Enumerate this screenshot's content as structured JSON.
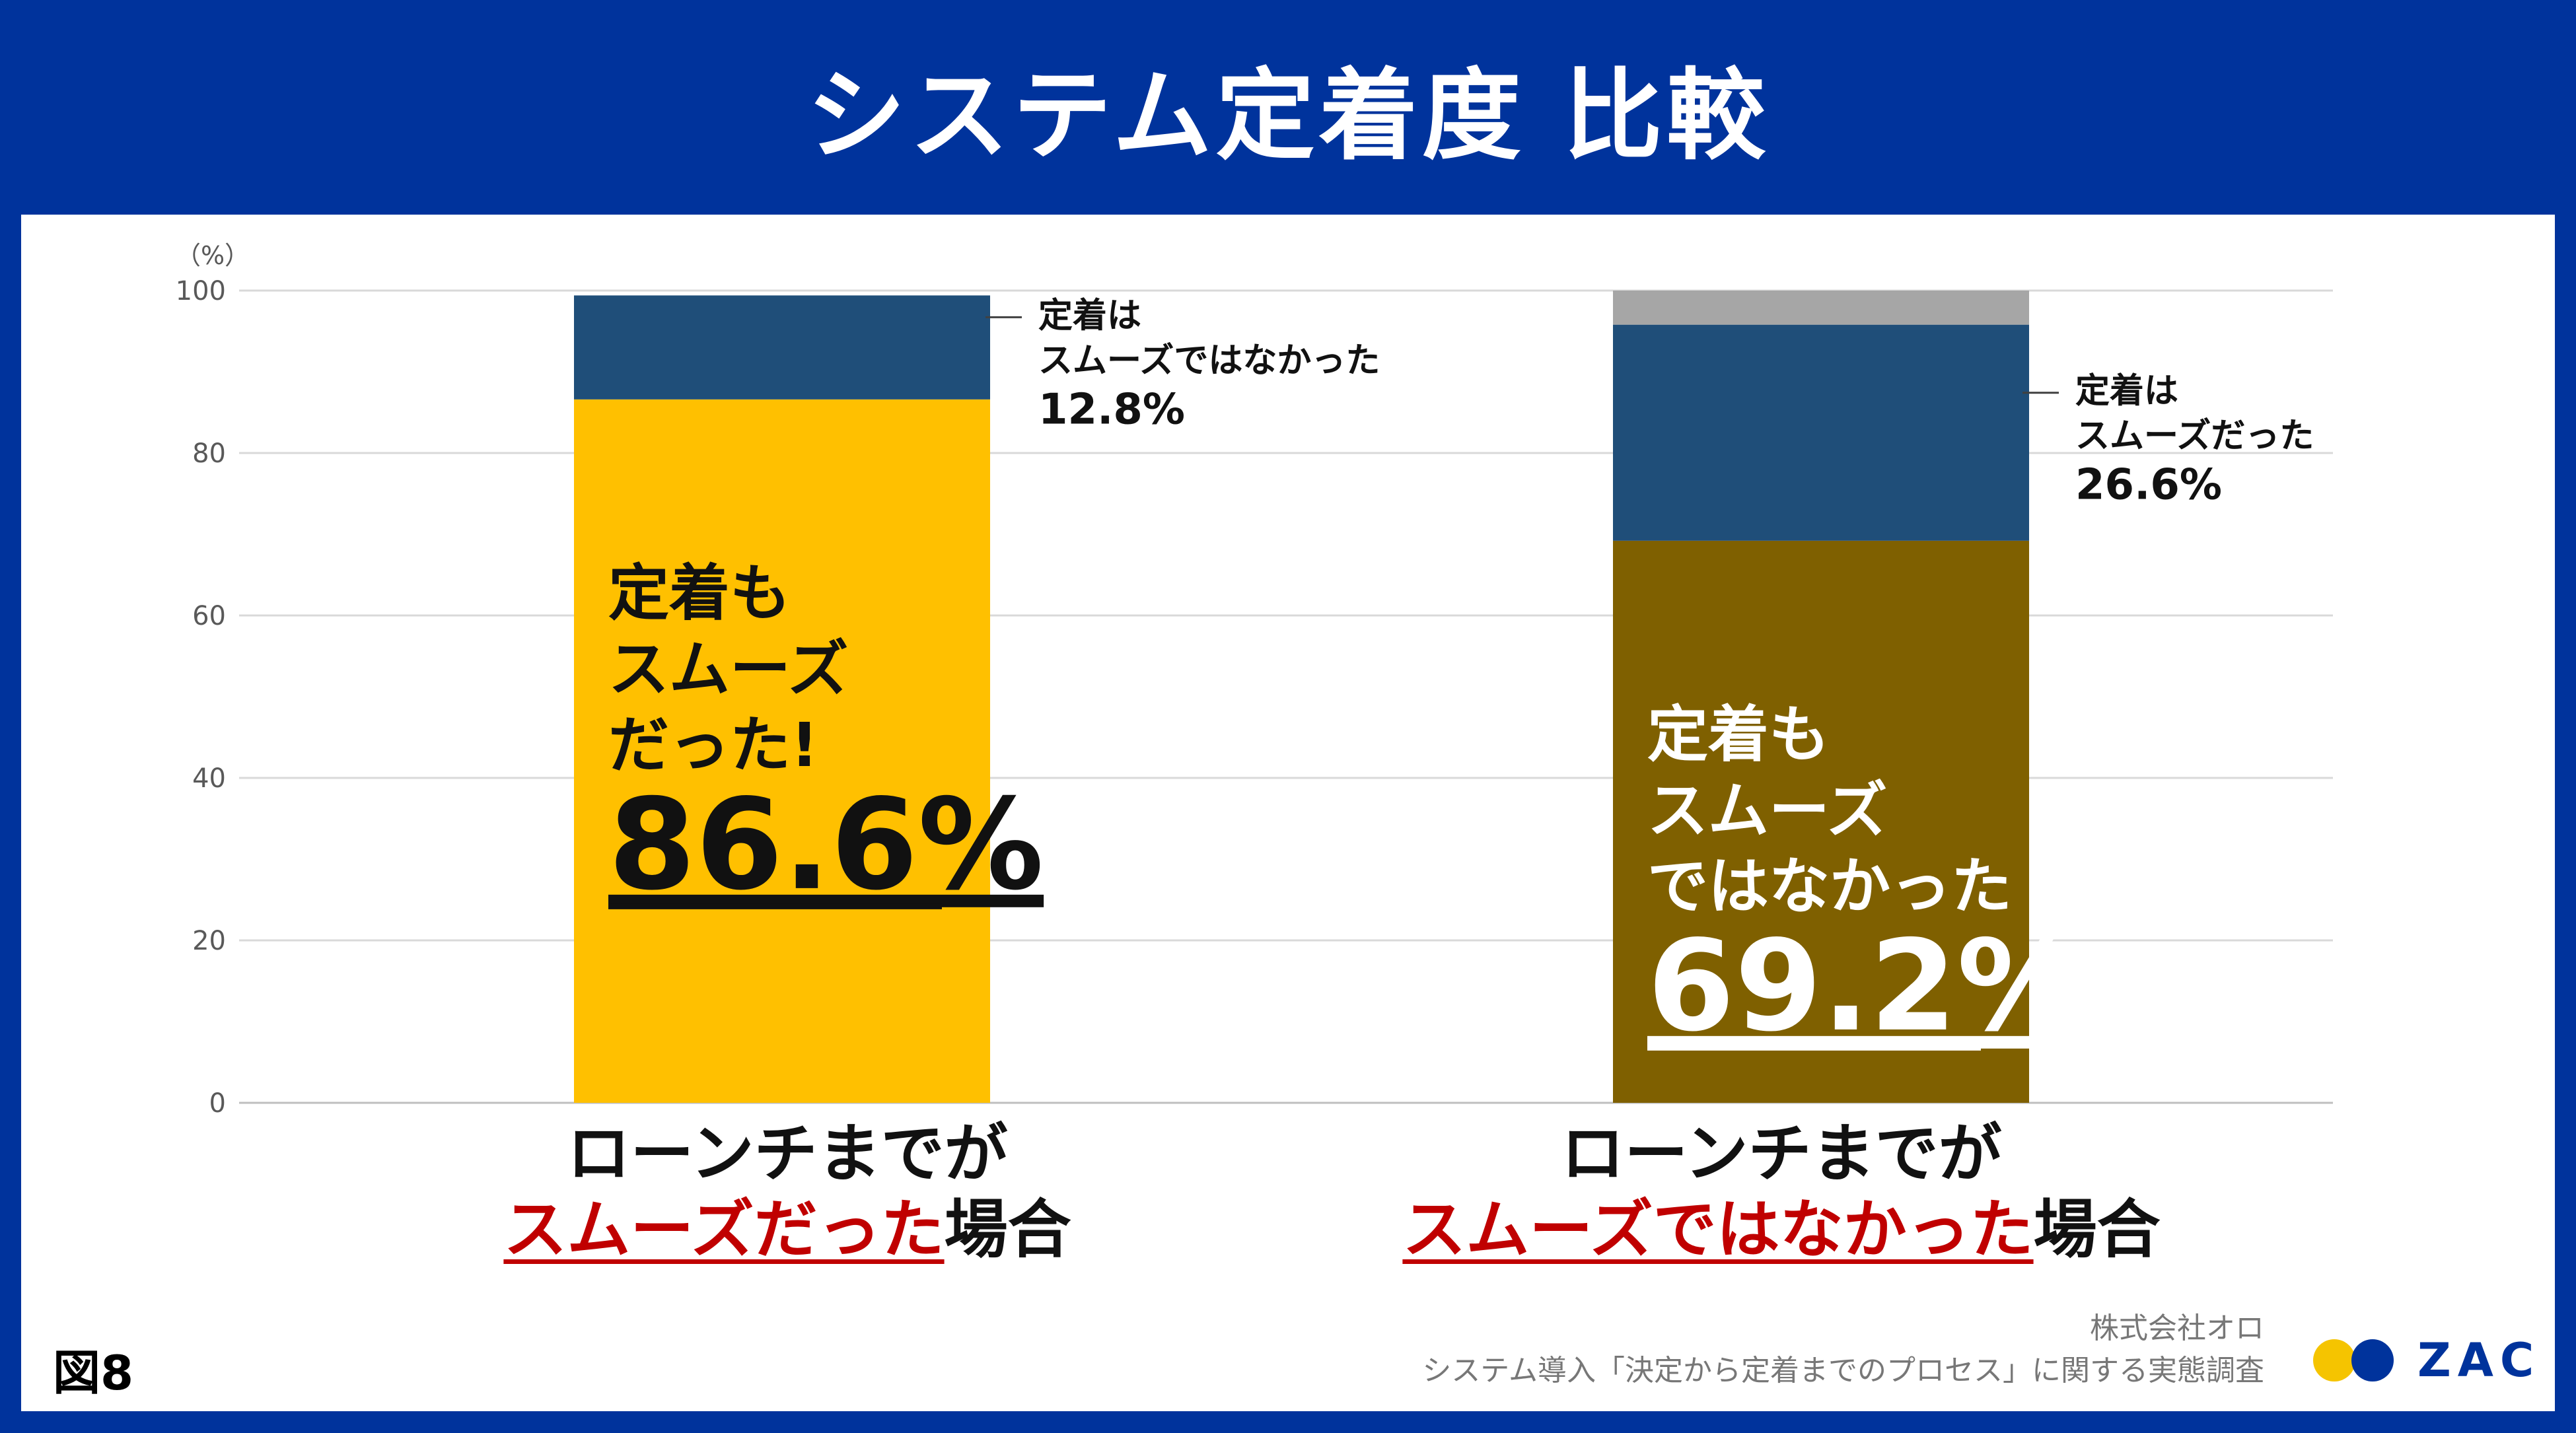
{
  "title": "システム定着度 比較",
  "chart_data": {
    "type": "bar",
    "stacked": true,
    "unit_label": "（%）",
    "ylim": [
      0,
      100
    ],
    "yticks": [
      0,
      20,
      40,
      60,
      80,
      100
    ],
    "grid": true,
    "categories": [
      "ローンチまでがスムーズだった場合",
      "ローンチまでがスムーズではなかった場合"
    ],
    "bars": [
      {
        "segments": [
          {
            "value": 86.6,
            "color": "#ffc000"
          },
          {
            "value": 12.8,
            "color": "#1f4e79"
          }
        ],
        "main_label": {
          "lines": [
            "定着も",
            "スムーズ",
            "だった!"
          ],
          "value": "86.6%",
          "text_color": "#111111"
        },
        "side_label": {
          "lines": [
            "定着は",
            "スムーズではなかった"
          ],
          "value": "12.8%"
        }
      },
      {
        "segments": [
          {
            "value": 69.2,
            "color": "#7f6000"
          },
          {
            "value": 26.6,
            "color": "#1f4e79"
          },
          {
            "value": 4.2,
            "color": "#a6a6a6"
          }
        ],
        "main_label": {
          "lines": [
            "定着も",
            "スムーズ",
            "ではなかった"
          ],
          "value": "69.2%",
          "text_color": "#ffffff"
        },
        "side_label": {
          "lines": [
            "定着は",
            "スムーズだった"
          ],
          "value": "26.6%"
        }
      }
    ]
  },
  "category_labels": [
    {
      "line1": "ローンチまでが",
      "highlight": "スムーズだった",
      "suffix": "場合"
    },
    {
      "line1": "ローンチまでが",
      "highlight": "スムーズではなかった",
      "suffix": "場合"
    }
  ],
  "figure_label": "図8",
  "source": {
    "company": "株式会社オロ",
    "survey": "システム導入「決定から定着までのプロセス」に関する実態調査"
  },
  "logo": {
    "text": "ZAC",
    "colors": [
      "#f5c400",
      "#00339c"
    ]
  }
}
